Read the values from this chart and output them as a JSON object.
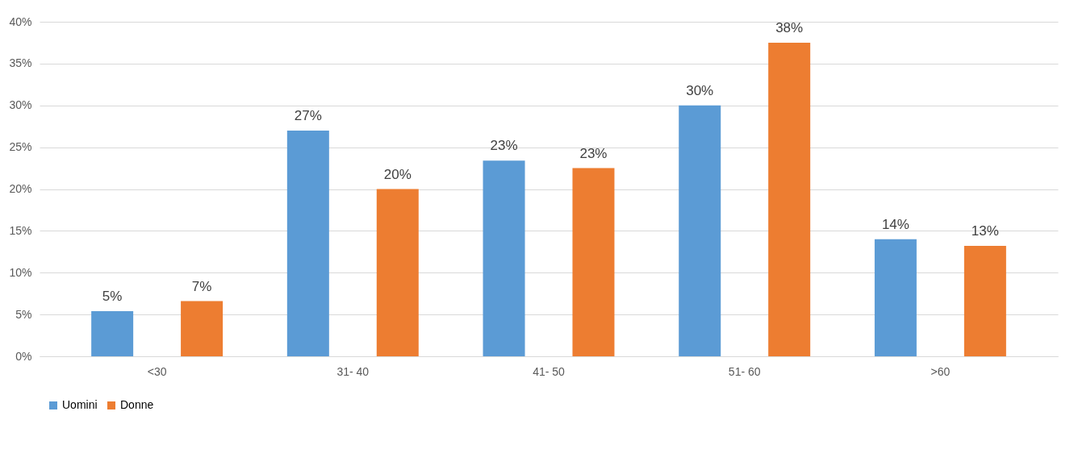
{
  "chart_data": {
    "type": "bar",
    "categories": [
      "<30",
      "31- 40",
      "41- 50",
      "51- 60",
      ">60"
    ],
    "series": [
      {
        "name": "Uomini",
        "color": "#5b9bd5",
        "values": [
          5.4,
          27,
          23.4,
          30,
          14
        ],
        "value_labels": [
          "5%",
          "27%",
          "23%",
          "30%",
          "14%"
        ]
      },
      {
        "name": "Donne",
        "color": "#ed7d31",
        "values": [
          6.6,
          20,
          22.5,
          37.5,
          13.2
        ],
        "value_labels": [
          "7%",
          "20%",
          "23%",
          "38%",
          "13%"
        ]
      }
    ],
    "ylim": [
      0,
      40
    ],
    "yticks": [
      {
        "value": 0,
        "label": "0%"
      },
      {
        "value": 5,
        "label": "5%"
      },
      {
        "value": 10,
        "label": "10%"
      },
      {
        "value": 15,
        "label": "15%"
      },
      {
        "value": 20,
        "label": "20%"
      },
      {
        "value": 25,
        "label": "25%"
      },
      {
        "value": 30,
        "label": "30%"
      },
      {
        "value": 35,
        "label": "35%"
      },
      {
        "value": 40,
        "label": "40%"
      }
    ],
    "grid": "y",
    "legend": "bottom"
  }
}
